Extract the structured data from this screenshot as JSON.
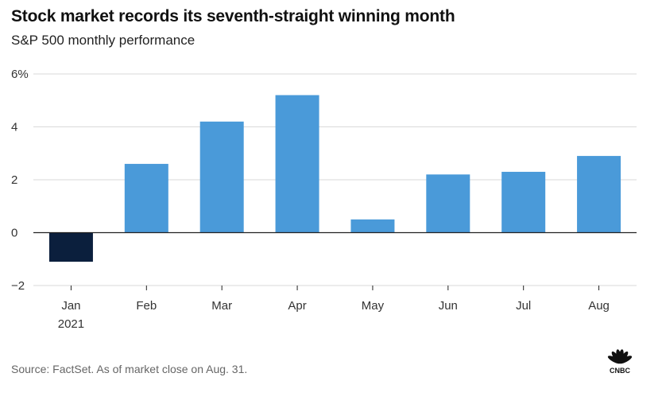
{
  "title": "Stock market records its seventh-straight winning month",
  "subtitle": "S&P 500 monthly performance",
  "source": "Source: FactSet. As of market close on Aug. 31.",
  "logo_text": "CNBC",
  "colors": {
    "positive": "#4a9ad9",
    "negative": "#0b1f3d",
    "grid": "#d9d9d9",
    "axis": "#222222",
    "text": "#333333"
  },
  "chart_data": {
    "type": "bar",
    "title": "Stock market records its seventh-straight winning month",
    "subtitle": "S&P 500 monthly performance",
    "categories": [
      "Jan",
      "Feb",
      "Mar",
      "Apr",
      "May",
      "Jun",
      "Jul",
      "Aug"
    ],
    "category_sublabels": [
      "2021",
      "",
      "",
      "",
      "",
      "",
      "",
      ""
    ],
    "values": [
      -1.1,
      2.6,
      4.2,
      5.2,
      0.5,
      2.2,
      2.3,
      2.9
    ],
    "ylim": [
      -2,
      6
    ],
    "yticks": [
      -2,
      0,
      2,
      4,
      6
    ],
    "ytick_labels": [
      "−2",
      "0",
      "2",
      "4",
      "6%"
    ],
    "xlabel": "",
    "ylabel": "",
    "grid": true,
    "legend": "none"
  }
}
